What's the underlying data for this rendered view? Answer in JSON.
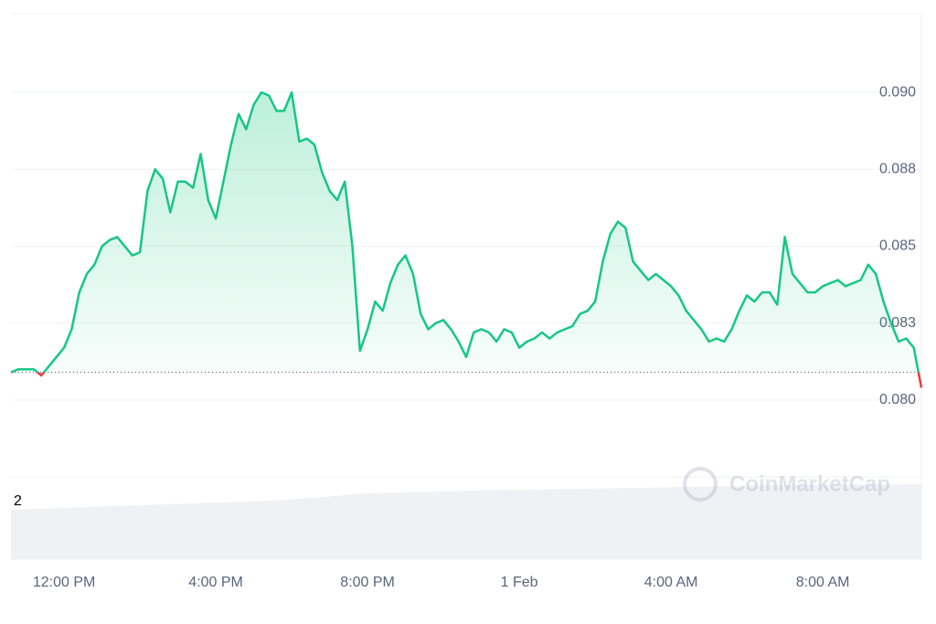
{
  "chart_data": {
    "type": "line",
    "watermark": "CoinMarketCap",
    "volume_label": "2",
    "values": [
      0.0809,
      0.081,
      0.081,
      0.081,
      0.0808,
      0.0811,
      0.0814,
      0.0817,
      0.0823,
      0.0835,
      0.0841,
      0.0844,
      0.085,
      0.0852,
      0.0853,
      0.085,
      0.0847,
      0.0848,
      0.0868,
      0.0875,
      0.0872,
      0.0861,
      0.0871,
      0.0871,
      0.0869,
      0.088,
      0.0865,
      0.0859,
      0.0871,
      0.0883,
      0.0893,
      0.0888,
      0.0896,
      0.09,
      0.0899,
      0.0894,
      0.0894,
      0.09,
      0.0884,
      0.0885,
      0.0883,
      0.0874,
      0.0868,
      0.0865,
      0.0871,
      0.085,
      0.0816,
      0.0823,
      0.0832,
      0.0829,
      0.0838,
      0.0844,
      0.0847,
      0.0841,
      0.0828,
      0.0823,
      0.0825,
      0.0826,
      0.0823,
      0.0819,
      0.0814,
      0.0822,
      0.0823,
      0.0822,
      0.0819,
      0.0823,
      0.0822,
      0.0817,
      0.0819,
      0.082,
      0.0822,
      0.082,
      0.0822,
      0.0823,
      0.0824,
      0.0828,
      0.0829,
      0.0832,
      0.0845,
      0.0854,
      0.0858,
      0.0856,
      0.0845,
      0.0842,
      0.0839,
      0.0841,
      0.0839,
      0.0837,
      0.0834,
      0.0829,
      0.0826,
      0.0823,
      0.0819,
      0.082,
      0.0819,
      0.0823,
      0.0829,
      0.0834,
      0.0832,
      0.0835,
      0.0835,
      0.0831,
      0.0853,
      0.0841,
      0.0838,
      0.0835,
      0.0835,
      0.0837,
      0.0838,
      0.0839,
      0.0837,
      0.0838,
      0.0839,
      0.0844,
      0.0841,
      0.0832,
      0.0825,
      0.0819,
      0.082,
      0.0817,
      0.0804
    ],
    "baseline": 0.0809,
    "color": "#16c784",
    "down_color": "#ea3943",
    "xlim": [
      0,
      120
    ],
    "xticks": [
      {
        "value": 7,
        "label": "12:00 PM"
      },
      {
        "value": 27,
        "label": "4:00 PM"
      },
      {
        "value": 47,
        "label": "8:00 PM"
      },
      {
        "value": 67,
        "label": "1 Feb"
      },
      {
        "value": 87,
        "label": "4:00 AM"
      },
      {
        "value": 107,
        "label": "8:00 AM"
      }
    ],
    "ylim": [
      0.0775,
      0.0925
    ],
    "yticks": [
      {
        "value": 0.08,
        "label": "0.080"
      },
      {
        "value": 0.0825,
        "label": "0.083"
      },
      0.085,
      {
        "value": 0.0875,
        "label": "0.088"
      },
      {
        "value": 0.09,
        "label": "0.090"
      }
    ],
    "grid": true
  }
}
